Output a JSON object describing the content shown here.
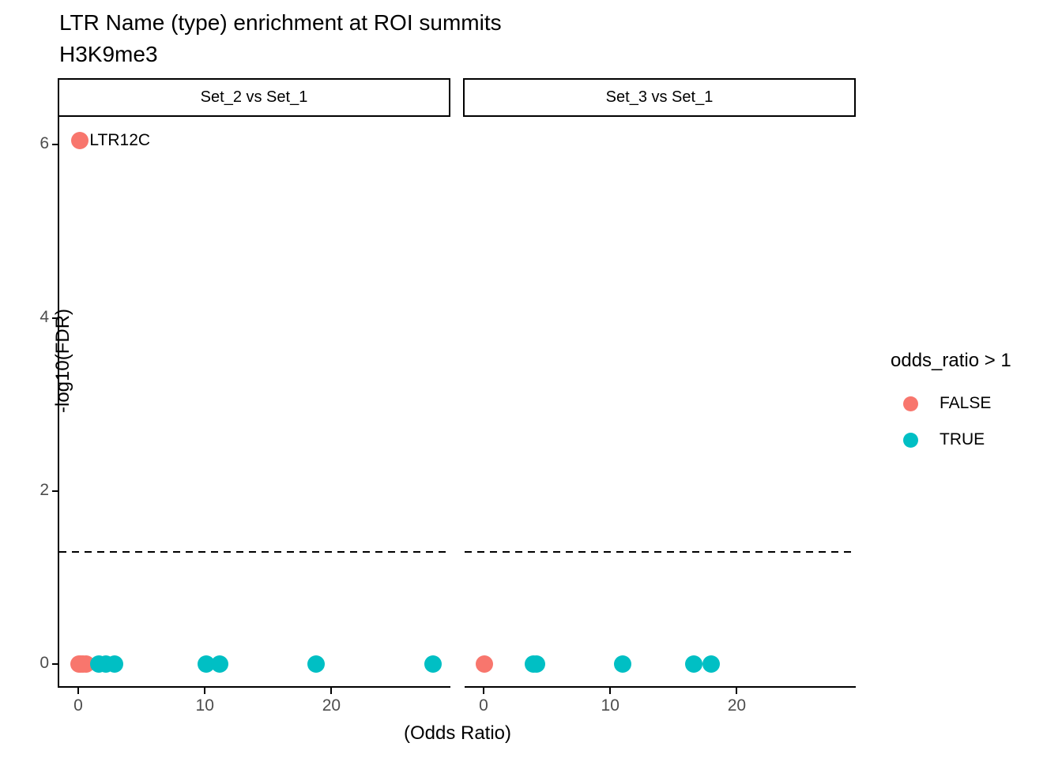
{
  "chart_data": {
    "type": "scatter",
    "title": "LTR Name (type) enrichment at ROI summits",
    "subtitle": "H3K9me3",
    "xlabel": "(Odds Ratio)",
    "ylabel": "-log10(FDR)",
    "xlim": [
      -1.5,
      29.4
    ],
    "ylim": [
      -0.26,
      6.32
    ],
    "x_ticks": [
      0,
      10,
      20
    ],
    "y_ticks": [
      0,
      2,
      4,
      6
    ],
    "grid": "off",
    "threshold_line": {
      "y": 1.301,
      "style": "dashed",
      "color": "#000000"
    },
    "colors": {
      "FALSE": "#F8766D",
      "TRUE": "#00BFC4"
    },
    "legend": {
      "title": "odds_ratio > 1",
      "position": "right",
      "entries": [
        {
          "label": "FALSE",
          "color": "#F8766D"
        },
        {
          "label": "TRUE",
          "color": "#00BFC4"
        }
      ]
    },
    "facets": [
      {
        "label": "Set_2 vs Set_1",
        "points": [
          {
            "x": 0.15,
            "y": 6.05,
            "group": "FALSE",
            "label": "LTR12C"
          },
          {
            "x": 0.05,
            "y": 0,
            "group": "FALSE"
          },
          {
            "x": 0.2,
            "y": 0,
            "group": "FALSE"
          },
          {
            "x": 0.4,
            "y": 0,
            "group": "FALSE"
          },
          {
            "x": 0.6,
            "y": 0,
            "group": "FALSE"
          },
          {
            "x": 1.6,
            "y": 0,
            "group": "TRUE"
          },
          {
            "x": 2.2,
            "y": 0,
            "group": "TRUE"
          },
          {
            "x": 2.9,
            "y": 0,
            "group": "TRUE"
          },
          {
            "x": 10.1,
            "y": 0,
            "group": "TRUE"
          },
          {
            "x": 11.2,
            "y": 0,
            "group": "TRUE"
          },
          {
            "x": 18.8,
            "y": 0,
            "group": "TRUE"
          },
          {
            "x": 28.0,
            "y": 0,
            "group": "TRUE"
          }
        ]
      },
      {
        "label": "Set_3 vs Set_1",
        "points": [
          {
            "x": 0.05,
            "y": 0,
            "group": "FALSE"
          },
          {
            "x": 3.9,
            "y": 0,
            "group": "TRUE"
          },
          {
            "x": 4.2,
            "y": 0,
            "group": "TRUE"
          },
          {
            "x": 11.0,
            "y": 0,
            "group": "TRUE"
          },
          {
            "x": 16.6,
            "y": 0,
            "group": "TRUE"
          },
          {
            "x": 18.0,
            "y": 0,
            "group": "TRUE"
          }
        ]
      }
    ]
  }
}
